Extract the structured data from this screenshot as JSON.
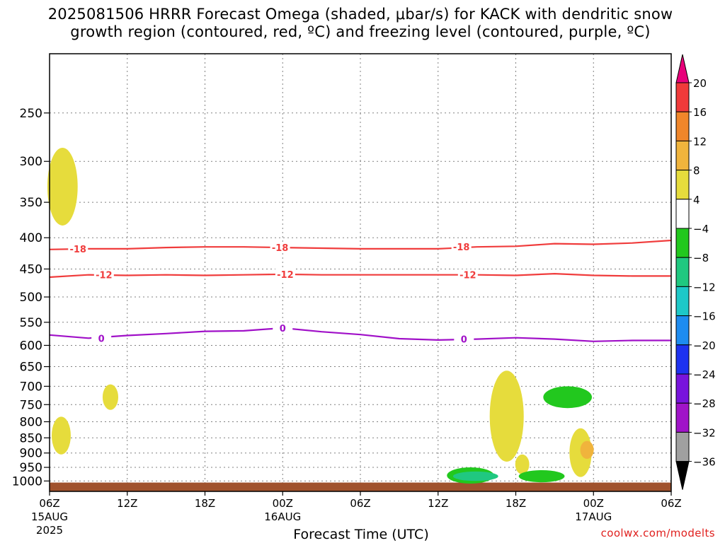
{
  "title": "2025081506 HRRR Forecast Omega (shaded, μbar/s) for KACK with dendritic snow\ngrowth region (contoured, red, ºC) and freezing level (contoured, purple, ºC)",
  "credit": "coolwx.com/modelts",
  "chart_data": {
    "type": "time-height cross-section",
    "title": "2025081506 HRRR Forecast Omega (shaded, μbar/s) for KACK with dendritic snow growth region (contoured, red, ºC) and freezing level (contoured, purple, ºC)",
    "xlabel": "Forecast Time (UTC)",
    "ylabel": "",
    "x_range_hours": [
      0,
      48
    ],
    "y_range_hpa": [
      200,
      1040
    ],
    "y_axis": "pressure, top = 200 hPa",
    "grid": true,
    "x_ticks": [
      {
        "hour": 0,
        "label": "06Z",
        "sub": "15AUG",
        "sub2": "2025"
      },
      {
        "hour": 6,
        "label": "12Z",
        "sub": "",
        "sub2": ""
      },
      {
        "hour": 12,
        "label": "18Z",
        "sub": "",
        "sub2": ""
      },
      {
        "hour": 18,
        "label": "00Z",
        "sub": "16AUG",
        "sub2": ""
      },
      {
        "hour": 24,
        "label": "06Z",
        "sub": "",
        "sub2": ""
      },
      {
        "hour": 30,
        "label": "12Z",
        "sub": "",
        "sub2": ""
      },
      {
        "hour": 36,
        "label": "18Z",
        "sub": "",
        "sub2": ""
      },
      {
        "hour": 42,
        "label": "00Z",
        "sub": "17AUG",
        "sub2": ""
      },
      {
        "hour": 48,
        "label": "06Z",
        "sub": "",
        "sub2": ""
      }
    ],
    "y_ticks": [
      250,
      300,
      350,
      400,
      450,
      500,
      550,
      600,
      650,
      700,
      750,
      800,
      850,
      900,
      950,
      1000
    ],
    "colorbar": {
      "labels": [
        "20",
        "16",
        "12",
        "8",
        "4",
        "−4",
        "−8",
        "−12",
        "−16",
        "−20",
        "−24",
        "−28",
        "−32",
        "−36"
      ],
      "colors": [
        "#e8007a",
        "#f03a3a",
        "#f0862a",
        "#f0b43c",
        "#e6dc3c",
        "#ffffff",
        "#22c81e",
        "#20c880",
        "#1ec8c8",
        "#1e8cf0",
        "#1e32f0",
        "#7814dc",
        "#a014c8",
        "#a0a0a0",
        "#000000"
      ]
    },
    "contours": [
      {
        "name": "-18",
        "color": "#f03c3c",
        "label": "-18",
        "points": [
          [
            0,
            418
          ],
          [
            3,
            417
          ],
          [
            6,
            417
          ],
          [
            9,
            415
          ],
          [
            12,
            414
          ],
          [
            15,
            414
          ],
          [
            18,
            415
          ],
          [
            21,
            416
          ],
          [
            24,
            417
          ],
          [
            27,
            417
          ],
          [
            30,
            417
          ],
          [
            33,
            414
          ],
          [
            36,
            413
          ],
          [
            39,
            409
          ],
          [
            42,
            410
          ],
          [
            45,
            408
          ],
          [
            48,
            404
          ]
        ],
        "label_hours": [
          2.2,
          17.8,
          31.8
        ]
      },
      {
        "name": "-12",
        "color": "#f03c3c",
        "label": "-12",
        "points": [
          [
            0,
            464
          ],
          [
            3,
            460
          ],
          [
            6,
            461
          ],
          [
            9,
            460
          ],
          [
            12,
            461
          ],
          [
            15,
            460
          ],
          [
            18,
            459
          ],
          [
            21,
            460
          ],
          [
            24,
            460
          ],
          [
            27,
            460
          ],
          [
            30,
            460
          ],
          [
            33,
            460
          ],
          [
            36,
            461
          ],
          [
            39,
            458
          ],
          [
            42,
            461
          ],
          [
            45,
            462
          ],
          [
            48,
            462
          ]
        ],
        "label_hours": [
          4.2,
          18.2,
          32.3
        ]
      },
      {
        "name": "0",
        "color": "#a010c8",
        "label": "0",
        "points": [
          [
            0,
            577
          ],
          [
            3,
            584
          ],
          [
            6,
            578
          ],
          [
            9,
            574
          ],
          [
            12,
            569
          ],
          [
            15,
            568
          ],
          [
            18,
            562
          ],
          [
            21,
            570
          ],
          [
            24,
            576
          ],
          [
            27,
            585
          ],
          [
            30,
            588
          ],
          [
            33,
            586
          ],
          [
            36,
            583
          ],
          [
            39,
            586
          ],
          [
            42,
            591
          ],
          [
            45,
            589
          ],
          [
            48,
            589
          ]
        ],
        "label_hours": [
          4.0,
          18.0,
          32.0
        ]
      }
    ],
    "omega_regions": [
      {
        "value": 4,
        "center_hour": 1.0,
        "top_hpa": 285,
        "bottom_hpa": 382
      },
      {
        "value": 4,
        "center_hour": 4.7,
        "top_hpa": 695,
        "bottom_hpa": 765
      },
      {
        "value": 4,
        "center_hour": 0.9,
        "top_hpa": 785,
        "bottom_hpa": 905
      },
      {
        "value": 4,
        "center_hour": 35.3,
        "top_hpa": 660,
        "bottom_hpa": 930
      },
      {
        "value": 4,
        "center_hour": 36.5,
        "top_hpa": 905,
        "bottom_hpa": 975
      },
      {
        "value": 4,
        "center_hour": 41.0,
        "top_hpa": 820,
        "bottom_hpa": 985
      },
      {
        "value": 8,
        "center_hour": 41.5,
        "top_hpa": 860,
        "bottom_hpa": 920
      },
      {
        "value": -4,
        "center_hour": 32.5,
        "top_hpa": 950,
        "bottom_hpa": 1010
      },
      {
        "value": -8,
        "center_hour": 32.9,
        "top_hpa": 965,
        "bottom_hpa": 1000
      },
      {
        "value": -4,
        "center_hour": 38.0,
        "top_hpa": 960,
        "bottom_hpa": 1005
      },
      {
        "value": -4,
        "center_hour": 40.0,
        "top_hpa": 700,
        "bottom_hpa": 760
      }
    ]
  }
}
